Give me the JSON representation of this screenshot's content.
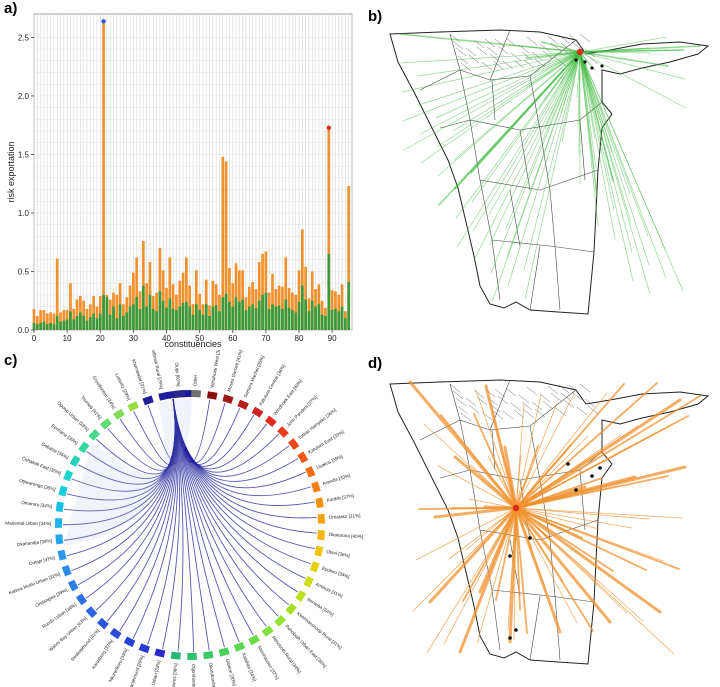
{
  "panel_labels": {
    "a": "a)",
    "b": "b)",
    "c": "c)",
    "d": "d)"
  },
  "colors": {
    "bar_total": "#f0912e",
    "bar_component": "#3a9a3a",
    "highlight_max": "#3355dd",
    "highlight_second": "#d62d20",
    "flow_green": "#3cb83c",
    "flow_orange": "#f0912e",
    "chord_dark": "#1e1e9a",
    "map_stroke": "#222222"
  },
  "chart_data": [
    {
      "type": "bar",
      "panel": "a)",
      "xlabel": "constituencies",
      "ylabel": "risk exportation",
      "ylim": [
        0,
        2.7
      ],
      "xlim": [
        0,
        96
      ],
      "yticks": [
        "0.0",
        "0.5",
        "1.0",
        "1.5",
        "2.0",
        "2.5"
      ],
      "xticks": [
        "0",
        "10",
        "20",
        "30",
        "40",
        "50",
        "60",
        "70",
        "80",
        "90"
      ],
      "grid": true,
      "legend": "none",
      "markers": [
        {
          "x": 21,
          "y": 2.62,
          "color": "blue"
        },
        {
          "x": 89,
          "y": 1.71,
          "color": "red"
        }
      ],
      "series": [
        {
          "color": "orange",
          "values": [
            0.18,
            0.12,
            0.17,
            0.17,
            0.14,
            0.15,
            0.14,
            0.61,
            0.15,
            0.17,
            0.17,
            0.4,
            0.18,
            0.26,
            0.29,
            0.25,
            0.18,
            0.22,
            0.29,
            0.2,
            0.29,
            2.62,
            0.3,
            0.26,
            0.32,
            0.3,
            0.4,
            0.22,
            0.28,
            0.38,
            0.49,
            0.62,
            0.33,
            0.76,
            0.4,
            0.58,
            0.29,
            0.32,
            0.7,
            0.51,
            0.36,
            0.62,
            0.39,
            0.3,
            0.42,
            0.49,
            0.62,
            0.38,
            0.22,
            0.51,
            0.31,
            0.22,
            0.43,
            0.21,
            0.42,
            0.39,
            0.3,
            1.48,
            1.44,
            0.53,
            0.4,
            0.57,
            0.51,
            0.51,
            0.28,
            0.37,
            0.41,
            0.35,
            0.58,
            0.65,
            0.67,
            0.32,
            0.48,
            0.35,
            0.38,
            0.37,
            0.62,
            0.36,
            0.32,
            0.3,
            0.51,
            0.86,
            0.54,
            0.27,
            0.5,
            0.35,
            0.39,
            0.25,
            0.19,
            1.71,
            0.34,
            0.33,
            0.3,
            0.39,
            0.16,
            1.23
          ]
        },
        {
          "color": "green",
          "values": [
            0.06,
            0.05,
            0.06,
            0.07,
            0.05,
            0.06,
            0.05,
            0.12,
            0.07,
            0.08,
            0.09,
            0.16,
            0.09,
            0.12,
            0.15,
            0.12,
            0.08,
            0.11,
            0.14,
            0.1,
            0.14,
            0.3,
            0.28,
            0.13,
            0.2,
            0.1,
            0.22,
            0.12,
            0.15,
            0.2,
            0.22,
            0.28,
            0.18,
            0.38,
            0.2,
            0.3,
            0.18,
            0.16,
            0.33,
            0.25,
            0.19,
            0.27,
            0.18,
            0.17,
            0.2,
            0.23,
            0.24,
            0.2,
            0.13,
            0.22,
            0.17,
            0.13,
            0.22,
            0.12,
            0.2,
            0.21,
            0.16,
            0.28,
            0.31,
            0.24,
            0.2,
            0.28,
            0.24,
            0.26,
            0.17,
            0.2,
            0.22,
            0.19,
            0.25,
            0.3,
            0.32,
            0.18,
            0.22,
            0.2,
            0.21,
            0.18,
            0.26,
            0.19,
            0.17,
            0.15,
            0.24,
            0.38,
            0.26,
            0.16,
            0.25,
            0.2,
            0.22,
            0.13,
            0.12,
            0.65,
            0.17,
            0.18,
            0.16,
            0.2,
            0.1,
            0.41
          ]
        }
      ]
    }
  ],
  "chord": {
    "panel": "c)",
    "labels": [
      "Keetmanshoop Urban [33%]",
      "Oranjemund [29%]",
      "Nkurenkuru [33%]",
      "Karasburg [37%]",
      "Swakopmund [41%]",
      "Walvis Bay Urban [43%]",
      "Rundu Urban [34%]",
      "Ondangwa [39%]",
      "Katima Mulilo Urban [32%]",
      "Outapi [37%]",
      "Okahandja [34%]",
      "Mariental Urban [34%]",
      "Omaruru [34%]",
      "Otjiwarongo [35%]",
      "Oshakati East [35%]",
      "Gobabis [35%]",
      "Eenhana [30%]",
      "Opuwo Urban [33%]",
      "Tsumeb [41%]",
      "Grootfontein [34%]",
      "Luderitz [29%]",
      "Khomasdal [31%]",
      "Windhoek Rural [79%]",
      "Outjo [60%]",
      "Other",
      "Windhoek West [32%]",
      "Moses Garoeb [41%]",
      "Samora Machel [35%]",
      "Katutura Central [36%]",
      "Windhoek East [40%]",
      "John Pandeni [37%]",
      "Tobias Hainyeko [36%]",
      "Katutura East [33%]",
      "Usakos [39%]",
      "Arandis [33%]",
      "Karibib [37%]",
      "Omatako [31%]",
      "Okakarara [40%]",
      "Otavi [36%]",
      "Epukiro [34%]",
      "Aminuis [31%]",
      "Berseba [34%]",
      "Keetmanshoop Rural [31%]",
      "Rehoboth Urban East [36%]",
      "Rehoboth Rural [34%]",
      "Steinhausen [37%]",
      "Kalahari [34%]",
      "Gibeon [30%]",
      "Okorukambe [35%]",
      "Otjombinde [34%]",
      "Daures [36%]"
    ]
  }
}
